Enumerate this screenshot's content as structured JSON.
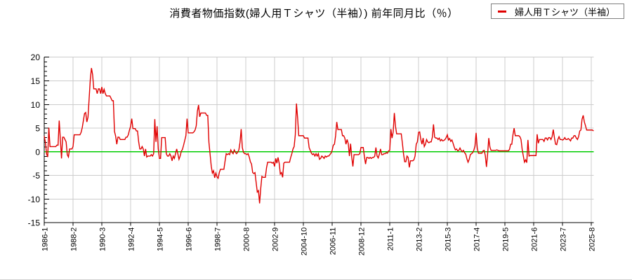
{
  "title": "消費者物価指数(婦人用Ｔシャツ（半袖）) 前年同月比（％）",
  "legend": {
    "label": "婦人用Ｔシャツ（半袖）"
  },
  "colors": {
    "series": "#e00000",
    "zero_line": "#00cc00",
    "grid": "#cccccc",
    "axis": "#000000",
    "background": "#ffffff",
    "text": "#000000"
  },
  "chart_data": {
    "type": "line",
    "title": "消費者物価指数(婦人用Ｔシャツ（半袖）) 前年同月比（％）",
    "xlabel": "",
    "ylabel": "",
    "x_start": "1986-1",
    "x_end": "2025-10",
    "x_frequency": "monthly",
    "x_tick_labels": [
      "1986-1",
      "1988-2",
      "1990-3",
      "1992-4",
      "1994-5",
      "1996-6",
      "1998-7",
      "2000-8",
      "2002-9",
      "2004-10",
      "2006-11",
      "2008-12",
      "2011-1",
      "2013-2",
      "2015-3",
      "2017-4",
      "2019-5",
      "2021-6",
      "2023-7",
      "2025-8"
    ],
    "x_tick_interval_months": 25,
    "ylim": [
      -15,
      20
    ],
    "y_ticks": [
      20,
      15,
      10,
      5,
      0,
      -5,
      -10,
      -15
    ],
    "y_minor_tick_step": 1,
    "grid": true,
    "zero_line": true,
    "legend_position": "top-right",
    "series": [
      {
        "name": "婦人用Ｔシャツ（半袖）",
        "values": [
          3.3,
          2.0,
          -0.4,
          -1.1,
          5.1,
          1.1,
          1.1,
          1.1,
          1.1,
          1.1,
          1.1,
          1.4,
          1.4,
          6.6,
          2.6,
          -1.4,
          3.1,
          3.1,
          2.6,
          2.1,
          -0.6,
          -1.1,
          0.6,
          0.6,
          0.6,
          1.1,
          3.6,
          3.6,
          3.6,
          3.6,
          3.6,
          3.6,
          4.1,
          5.1,
          6.6,
          8.1,
          8.3,
          6.3,
          7.3,
          11.3,
          15.3,
          17.7,
          16.3,
          13.3,
          13.3,
          13.3,
          12.3,
          13.3,
          13.3,
          12.3,
          13.7,
          12.3,
          13.2,
          12.3,
          11.8,
          11.8,
          11.8,
          11.8,
          11.3,
          10.8,
          10.8,
          4.3,
          3.3,
          1.6,
          3.1,
          3.1,
          2.6,
          2.6,
          2.6,
          2.6,
          2.6,
          3.1,
          3.1,
          3.6,
          4.6,
          5.4,
          7.0,
          4.9,
          4.9,
          4.9,
          4.4,
          4.4,
          2.1,
          0.6,
          0.6,
          1.1,
          0.6,
          -0.9,
          0.6,
          -1.1,
          -0.9,
          -0.9,
          -0.9,
          -0.6,
          -0.9,
          -0.4,
          6.9,
          2.1,
          5.4,
          0.6,
          -1.4,
          -1.4,
          3.0,
          3.0,
          3.0,
          3.0,
          -0.4,
          -0.9,
          -0.9,
          -0.4,
          -0.9,
          -1.9,
          -0.9,
          -1.4,
          -0.4,
          0.6,
          -0.4,
          -1.6,
          -0.9,
          0.1,
          0.5,
          1.4,
          2.4,
          3.4,
          7.0,
          4.0,
          4.0,
          4.0,
          4.0,
          4.0,
          4.2,
          4.6,
          5.5,
          8.6,
          9.9,
          7.4,
          8.2,
          8.2,
          8.2,
          8.2,
          8.2,
          7.7,
          7.7,
          2.0,
          -0.5,
          -3.0,
          -4.5,
          -4.0,
          -5.5,
          -4.5,
          -5.3,
          -5.6,
          -4.4,
          -3.7,
          -3.7,
          -3.7,
          -3.7,
          -2.0,
          -0.4,
          -0.6,
          -0.4,
          -0.6,
          0.4,
          -0.1,
          -0.4,
          0.4,
          -0.1,
          -0.4,
          -0.1,
          0.4,
          2.0,
          4.8,
          0.9,
          -0.1,
          -0.4,
          -0.4,
          -0.6,
          -0.4,
          -1.1,
          -2.1,
          -2.6,
          -4.4,
          -4.6,
          -4.4,
          -6.5,
          -8.5,
          -8.2,
          -10.9,
          -7.7,
          -5.2,
          -5.4,
          -5.4,
          -5.4,
          -3.4,
          -2.2,
          -2.2,
          -2.2,
          -2.2,
          -2.4,
          -2.2,
          -3.1,
          -1.4,
          -2.4,
          -1.2,
          -2.4,
          -4.7,
          -4.4,
          -5.4,
          -2.4,
          -2.2,
          -2.2,
          -2.2,
          -2.2,
          -2.2,
          -1.2,
          -0.4,
          0.6,
          1.1,
          3.6,
          10.2,
          7.2,
          3.4,
          3.4,
          3.4,
          3.4,
          3.4,
          2.9,
          2.9,
          2.9,
          2.9,
          0.9,
          0.3,
          -0.3,
          -0.6,
          -0.4,
          -0.9,
          -0.4,
          -0.9,
          -0.4,
          -1.6,
          -1.4,
          -0.9,
          -1.1,
          -1.4,
          -0.9,
          -1.1,
          -0.9,
          -0.9,
          -0.6,
          -0.3,
          0.3,
          1.4,
          1.6,
          3.4,
          6.3,
          4.7,
          4.7,
          4.7,
          4.7,
          3.4,
          3.4,
          2.9,
          1.6,
          2.6,
          1.7,
          -0.9,
          1.7,
          -1.1,
          -3.1,
          -0.6,
          -0.6,
          -0.6,
          -0.6,
          -0.6,
          -0.4,
          0.9,
          0.9,
          0.9,
          -1.0,
          -2.6,
          -1.2,
          -1.2,
          -1.4,
          -1.2,
          -1.4,
          -1.2,
          -1.2,
          -0.9,
          0.9,
          -0.9,
          -1.3,
          -0.5,
          0.6,
          -0.6,
          -0.6,
          -0.4,
          -0.4,
          -0.2,
          -0.3,
          0.2,
          0.3,
          4.8,
          2.9,
          4.2,
          8.2,
          5.4,
          3.8,
          3.8,
          3.8,
          3.8,
          3.8,
          1.8,
          -0.5,
          -2.1,
          -2.1,
          -0.9,
          -1.2,
          -3.3,
          -1.9,
          -1.9,
          -1.9,
          -1.7,
          -0.9,
          1.6,
          2.1,
          4.1,
          4.2,
          2.6,
          1.6,
          2.9,
          1.1,
          1.6,
          2.6,
          2.1,
          1.9,
          2.1,
          2.1,
          3.1,
          5.8,
          3.1,
          2.9,
          2.9,
          2.6,
          2.9,
          2.3,
          2.6,
          2.3,
          2.4,
          2.6,
          3.0,
          3.6,
          2.5,
          2.8,
          2.2,
          2.5,
          1.8,
          1.0,
          0.4,
          0.6,
          0.2,
          0.3,
          0.8,
          0.3,
          0.0,
          0.3,
          -0.2,
          -0.5,
          -1.5,
          -2.2,
          -1.6,
          -0.6,
          -0.4,
          -0.2,
          0.3,
          1.2,
          4.0,
          0.8,
          -0.3,
          -0.3,
          -0.3,
          -0.3,
          0.2,
          0.3,
          -0.8,
          -3.2,
          -0.5,
          2.9,
          1.0,
          0.3,
          0.3,
          0.3,
          0.3,
          0.3,
          0.4,
          0.3,
          0.2,
          0.2,
          0.2,
          0.2,
          0.2,
          0.2,
          0.2,
          0.2,
          0.2,
          0.5,
          1.6,
          1.6,
          3.6,
          5.0,
          3.4,
          3.4,
          3.4,
          3.4,
          3.2,
          2.6,
          0.5,
          -0.9,
          -2.2,
          -1.7,
          -2.3,
          2.5,
          -0.9,
          -0.8,
          -0.8,
          -0.8,
          -0.8,
          -0.8,
          -0.8,
          3.7,
          1.8,
          2.6,
          2.6,
          2.6,
          2.6,
          2.2,
          2.9,
          2.9,
          2.5,
          3.0,
          3.0,
          2.6,
          3.2,
          4.7,
          3.0,
          1.6,
          1.5,
          2.6,
          3.2,
          2.6,
          2.6,
          2.5,
          2.6,
          3.0,
          2.6,
          2.6,
          2.8,
          2.6,
          2.3,
          2.9,
          2.9,
          3.4,
          3.4,
          2.9,
          2.6,
          3.2,
          4.4,
          4.6,
          6.9,
          7.7,
          6.3,
          5.5,
          4.6,
          4.6,
          4.6,
          4.6,
          4.6,
          4.6,
          4.4
        ]
      }
    ]
  }
}
